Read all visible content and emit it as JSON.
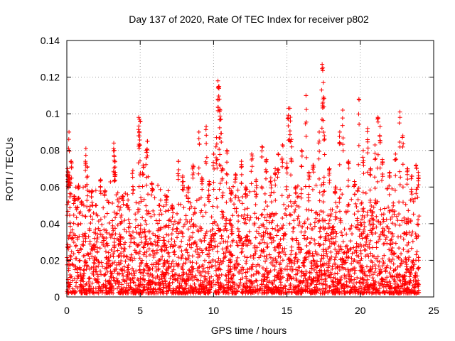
{
  "chart_data": {
    "type": "scatter",
    "title": "Day 137 of 2020, Rate Of TEC Index for receiver p802",
    "xlabel": "GPS time / hours",
    "ylabel": "ROTI / TECUs",
    "xlim": [
      0,
      25
    ],
    "ylim": [
      0,
      0.14
    ],
    "xticks": [
      0,
      5,
      10,
      15,
      20,
      25
    ],
    "xtick_labels": [
      "0",
      "5",
      "10",
      "15",
      "20",
      "25"
    ],
    "yticks": [
      0,
      0.02,
      0.04,
      0.06,
      0.08,
      0.1,
      0.12,
      0.14
    ],
    "ytick_labels": [
      "0",
      "0.02",
      "0.04",
      "0.06",
      "0.08",
      "0.1",
      "0.12",
      "0.14"
    ],
    "grid": true,
    "marker": "plus",
    "color": "#ff0000",
    "series": [
      {
        "points": [
          [
            0.05,
            0.07
          ],
          [
            0.1,
            0.068
          ],
          [
            0.15,
            0.09
          ],
          [
            0.2,
            0.065
          ],
          [
            0.3,
            0.074
          ],
          [
            0.5,
            0.055
          ],
          [
            0.8,
            0.061
          ],
          [
            1.0,
            0.052
          ],
          [
            1.3,
            0.081
          ],
          [
            1.4,
            0.071
          ],
          [
            1.7,
            0.058
          ],
          [
            2.0,
            0.05
          ],
          [
            2.3,
            0.064
          ],
          [
            2.6,
            0.058
          ],
          [
            3.2,
            0.084
          ],
          [
            3.25,
            0.08
          ],
          [
            3.3,
            0.068
          ],
          [
            3.8,
            0.055
          ],
          [
            4.1,
            0.05
          ],
          [
            4.5,
            0.069
          ],
          [
            4.9,
            0.098
          ],
          [
            4.95,
            0.097
          ],
          [
            5.0,
            0.096
          ],
          [
            5.2,
            0.072
          ],
          [
            5.4,
            0.08
          ],
          [
            5.5,
            0.085
          ],
          [
            5.8,
            0.062
          ],
          [
            6.3,
            0.05
          ],
          [
            6.8,
            0.055
          ],
          [
            7.2,
            0.048
          ],
          [
            7.6,
            0.074
          ],
          [
            7.9,
            0.066
          ],
          [
            8.3,
            0.06
          ],
          [
            8.6,
            0.072
          ],
          [
            9.0,
            0.09
          ],
          [
            9.2,
            0.065
          ],
          [
            9.5,
            0.093
          ],
          [
            9.7,
            0.063
          ],
          [
            10.0,
            0.078
          ],
          [
            10.2,
            0.087
          ],
          [
            10.3,
            0.118
          ],
          [
            10.35,
            0.115
          ],
          [
            10.4,
            0.108
          ],
          [
            10.45,
            0.102
          ],
          [
            10.5,
            0.097
          ],
          [
            10.6,
            0.07
          ],
          [
            10.9,
            0.08
          ],
          [
            11.2,
            0.058
          ],
          [
            11.5,
            0.067
          ],
          [
            11.9,
            0.074
          ],
          [
            12.2,
            0.06
          ],
          [
            12.6,
            0.078
          ],
          [
            12.9,
            0.064
          ],
          [
            13.3,
            0.082
          ],
          [
            13.6,
            0.075
          ],
          [
            13.9,
            0.065
          ],
          [
            14.2,
            0.07
          ],
          [
            14.4,
            0.078
          ],
          [
            14.7,
            0.083
          ],
          [
            15.0,
            0.073
          ],
          [
            15.1,
            0.103
          ],
          [
            15.2,
            0.103
          ],
          [
            15.3,
            0.086
          ],
          [
            15.6,
            0.06
          ],
          [
            16.0,
            0.08
          ],
          [
            16.3,
            0.11
          ],
          [
            16.5,
            0.068
          ],
          [
            16.8,
            0.072
          ],
          [
            17.2,
            0.09
          ],
          [
            17.4,
            0.127
          ],
          [
            17.45,
            0.125
          ],
          [
            17.5,
            0.109
          ],
          [
            17.55,
            0.088
          ],
          [
            17.9,
            0.07
          ],
          [
            18.3,
            0.06
          ],
          [
            18.6,
            0.09
          ],
          [
            18.8,
            0.102
          ],
          [
            19.2,
            0.074
          ],
          [
            19.6,
            0.063
          ],
          [
            19.9,
            0.108
          ],
          [
            20.2,
            0.08
          ],
          [
            20.5,
            0.092
          ],
          [
            20.7,
            0.07
          ],
          [
            21.0,
            0.083
          ],
          [
            21.2,
            0.098
          ],
          [
            21.35,
            0.093
          ],
          [
            21.5,
            0.075
          ],
          [
            22.0,
            0.068
          ],
          [
            22.4,
            0.078
          ],
          [
            22.7,
            0.101
          ],
          [
            22.9,
            0.088
          ],
          [
            23.2,
            0.07
          ],
          [
            23.5,
            0.066
          ],
          [
            23.8,
            0.072
          ],
          [
            23.95,
            0.068
          ]
        ]
      }
    ],
    "dense_band": {
      "x_range": [
        0,
        24
      ],
      "y_floor": 0.002,
      "typical_max": 0.05
    }
  }
}
